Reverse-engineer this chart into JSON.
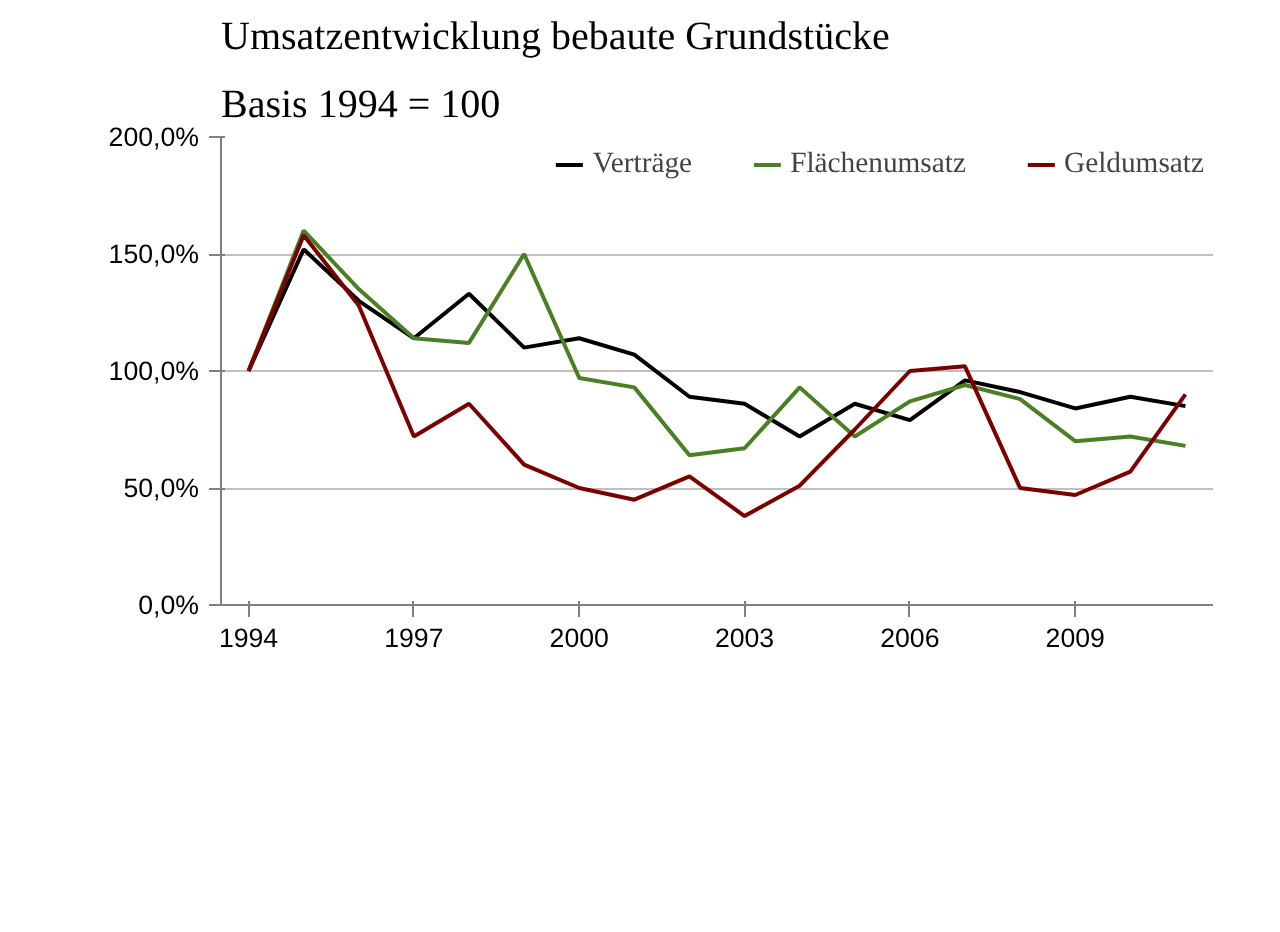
{
  "chart_data": {
    "type": "line",
    "title": "Umsatzentwicklung bebaute Grundstücke",
    "subtitle": "Basis 1994 = 100",
    "x": [
      1994,
      1995,
      1996,
      1997,
      1998,
      1999,
      2000,
      2001,
      2002,
      2003,
      2004,
      2005,
      2006,
      2007,
      2008,
      2009,
      2010,
      2011
    ],
    "series": [
      {
        "name": "Verträge",
        "color": "#000000",
        "values": [
          100,
          152,
          130,
          114,
          133,
          110,
          114,
          107,
          89,
          86,
          72,
          86,
          79,
          96,
          91,
          84,
          89,
          85
        ]
      },
      {
        "name": "Flächenumsatz",
        "color": "#4a7f23",
        "values": [
          100,
          160,
          135,
          114,
          112,
          150,
          97,
          93,
          64,
          67,
          93,
          72,
          87,
          94,
          88,
          70,
          72,
          68
        ]
      },
      {
        "name": "Geldumsatz",
        "color": "#7b0000",
        "values": [
          100,
          158,
          128,
          72,
          86,
          60,
          50,
          45,
          55,
          38,
          51,
          75,
          100,
          102,
          50,
          47,
          57,
          90
        ]
      }
    ],
    "xlim": [
      1993.5,
      2011.5
    ],
    "xticks": [
      1994,
      1997,
      2000,
      2003,
      2006,
      2009
    ],
    "ylim": [
      0,
      200
    ],
    "yticks": [
      {
        "value": 0,
        "label": "0,0%"
      },
      {
        "value": 50,
        "label": "50,0%"
      },
      {
        "value": 100,
        "label": "100,0%"
      },
      {
        "value": 150,
        "label": "150,0%"
      },
      {
        "value": 200,
        "label": "200,0%"
      }
    ],
    "grid": "y",
    "legend": "top",
    "marker": "none",
    "line_style": "solid"
  }
}
